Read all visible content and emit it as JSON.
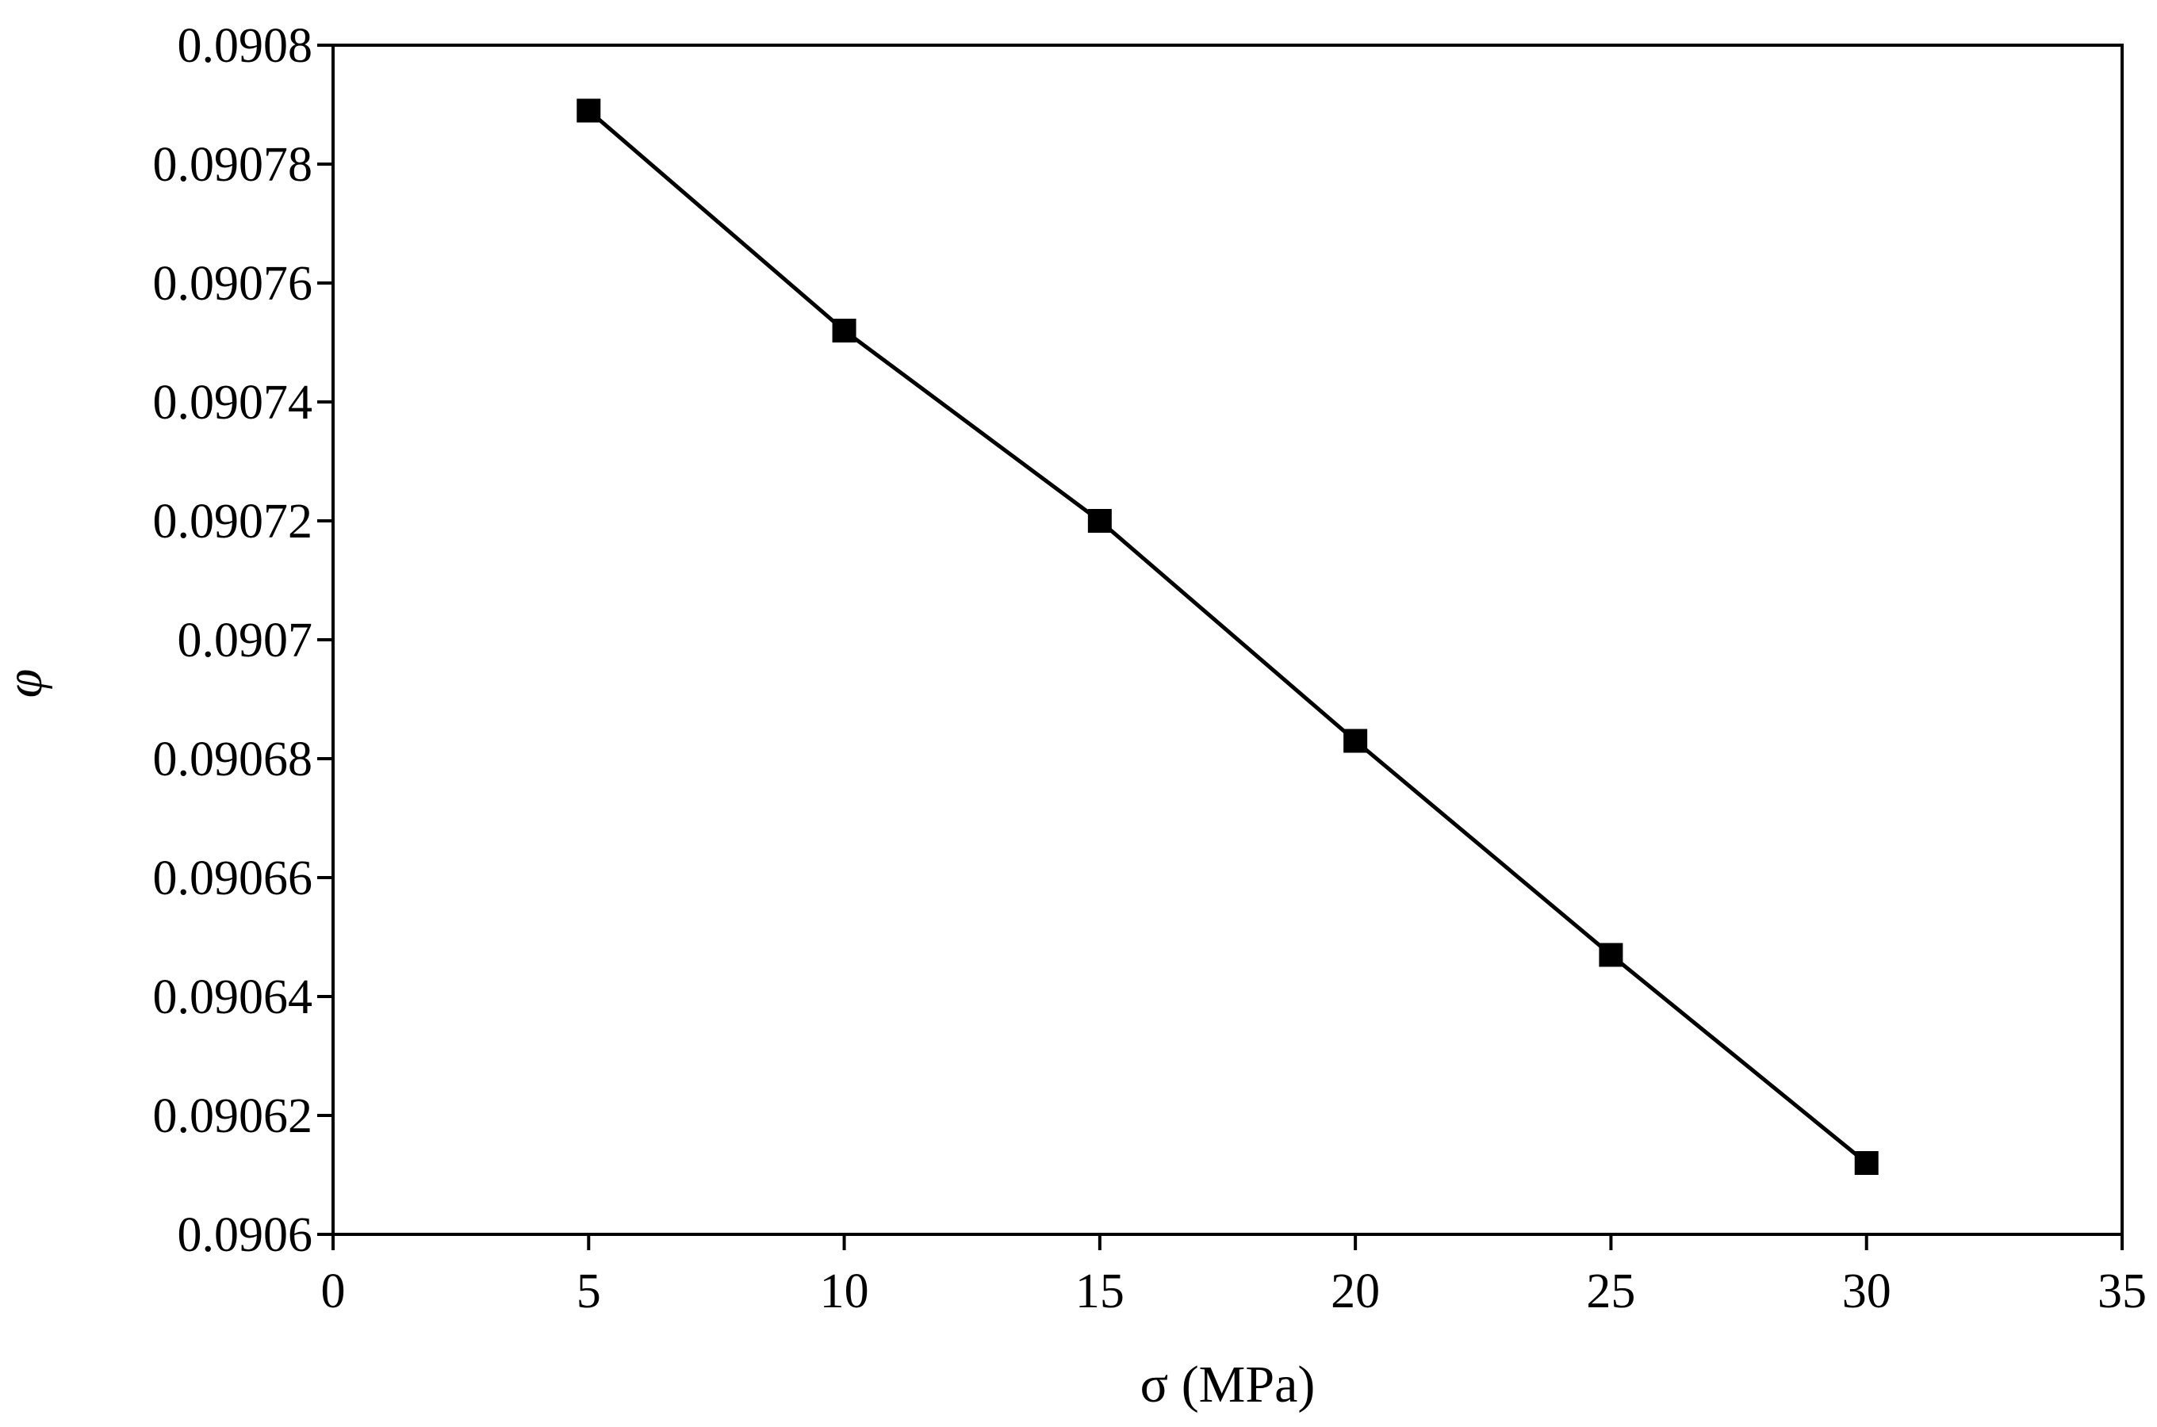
{
  "chart_data": {
    "type": "line",
    "title": "",
    "xlabel": "σ (MPa)",
    "ylabel": "φ",
    "xlim": [
      0,
      35
    ],
    "ylim": [
      0.0906,
      0.0908
    ],
    "x_ticks": [
      {
        "value": 0,
        "label": "0"
      },
      {
        "value": 5,
        "label": "5"
      },
      {
        "value": 10,
        "label": "10"
      },
      {
        "value": 15,
        "label": "15"
      },
      {
        "value": 20,
        "label": "20"
      },
      {
        "value": 25,
        "label": "25"
      },
      {
        "value": 30,
        "label": "30"
      },
      {
        "value": 35,
        "label": "35"
      }
    ],
    "y_ticks": [
      {
        "value": 0.0906,
        "label": "0.0906"
      },
      {
        "value": 0.09062,
        "label": "0.09062"
      },
      {
        "value": 0.09064,
        "label": "0.09064"
      },
      {
        "value": 0.09066,
        "label": "0.09066"
      },
      {
        "value": 0.09068,
        "label": "0.09068"
      },
      {
        "value": 0.0907,
        "label": "0.0907"
      },
      {
        "value": 0.09072,
        "label": "0.09072"
      },
      {
        "value": 0.09074,
        "label": "0.09074"
      },
      {
        "value": 0.09076,
        "label": "0.09076"
      },
      {
        "value": 0.09078,
        "label": "0.09078"
      },
      {
        "value": 0.0908,
        "label": "0.0908"
      }
    ],
    "grid": false,
    "legend": "none",
    "series": [
      {
        "marker": "square",
        "color": "#000000",
        "x": [
          5,
          10,
          15,
          20,
          25,
          30
        ],
        "y": [
          0.090789,
          0.090752,
          0.09072,
          0.090683,
          0.090647,
          0.090612
        ]
      }
    ]
  }
}
